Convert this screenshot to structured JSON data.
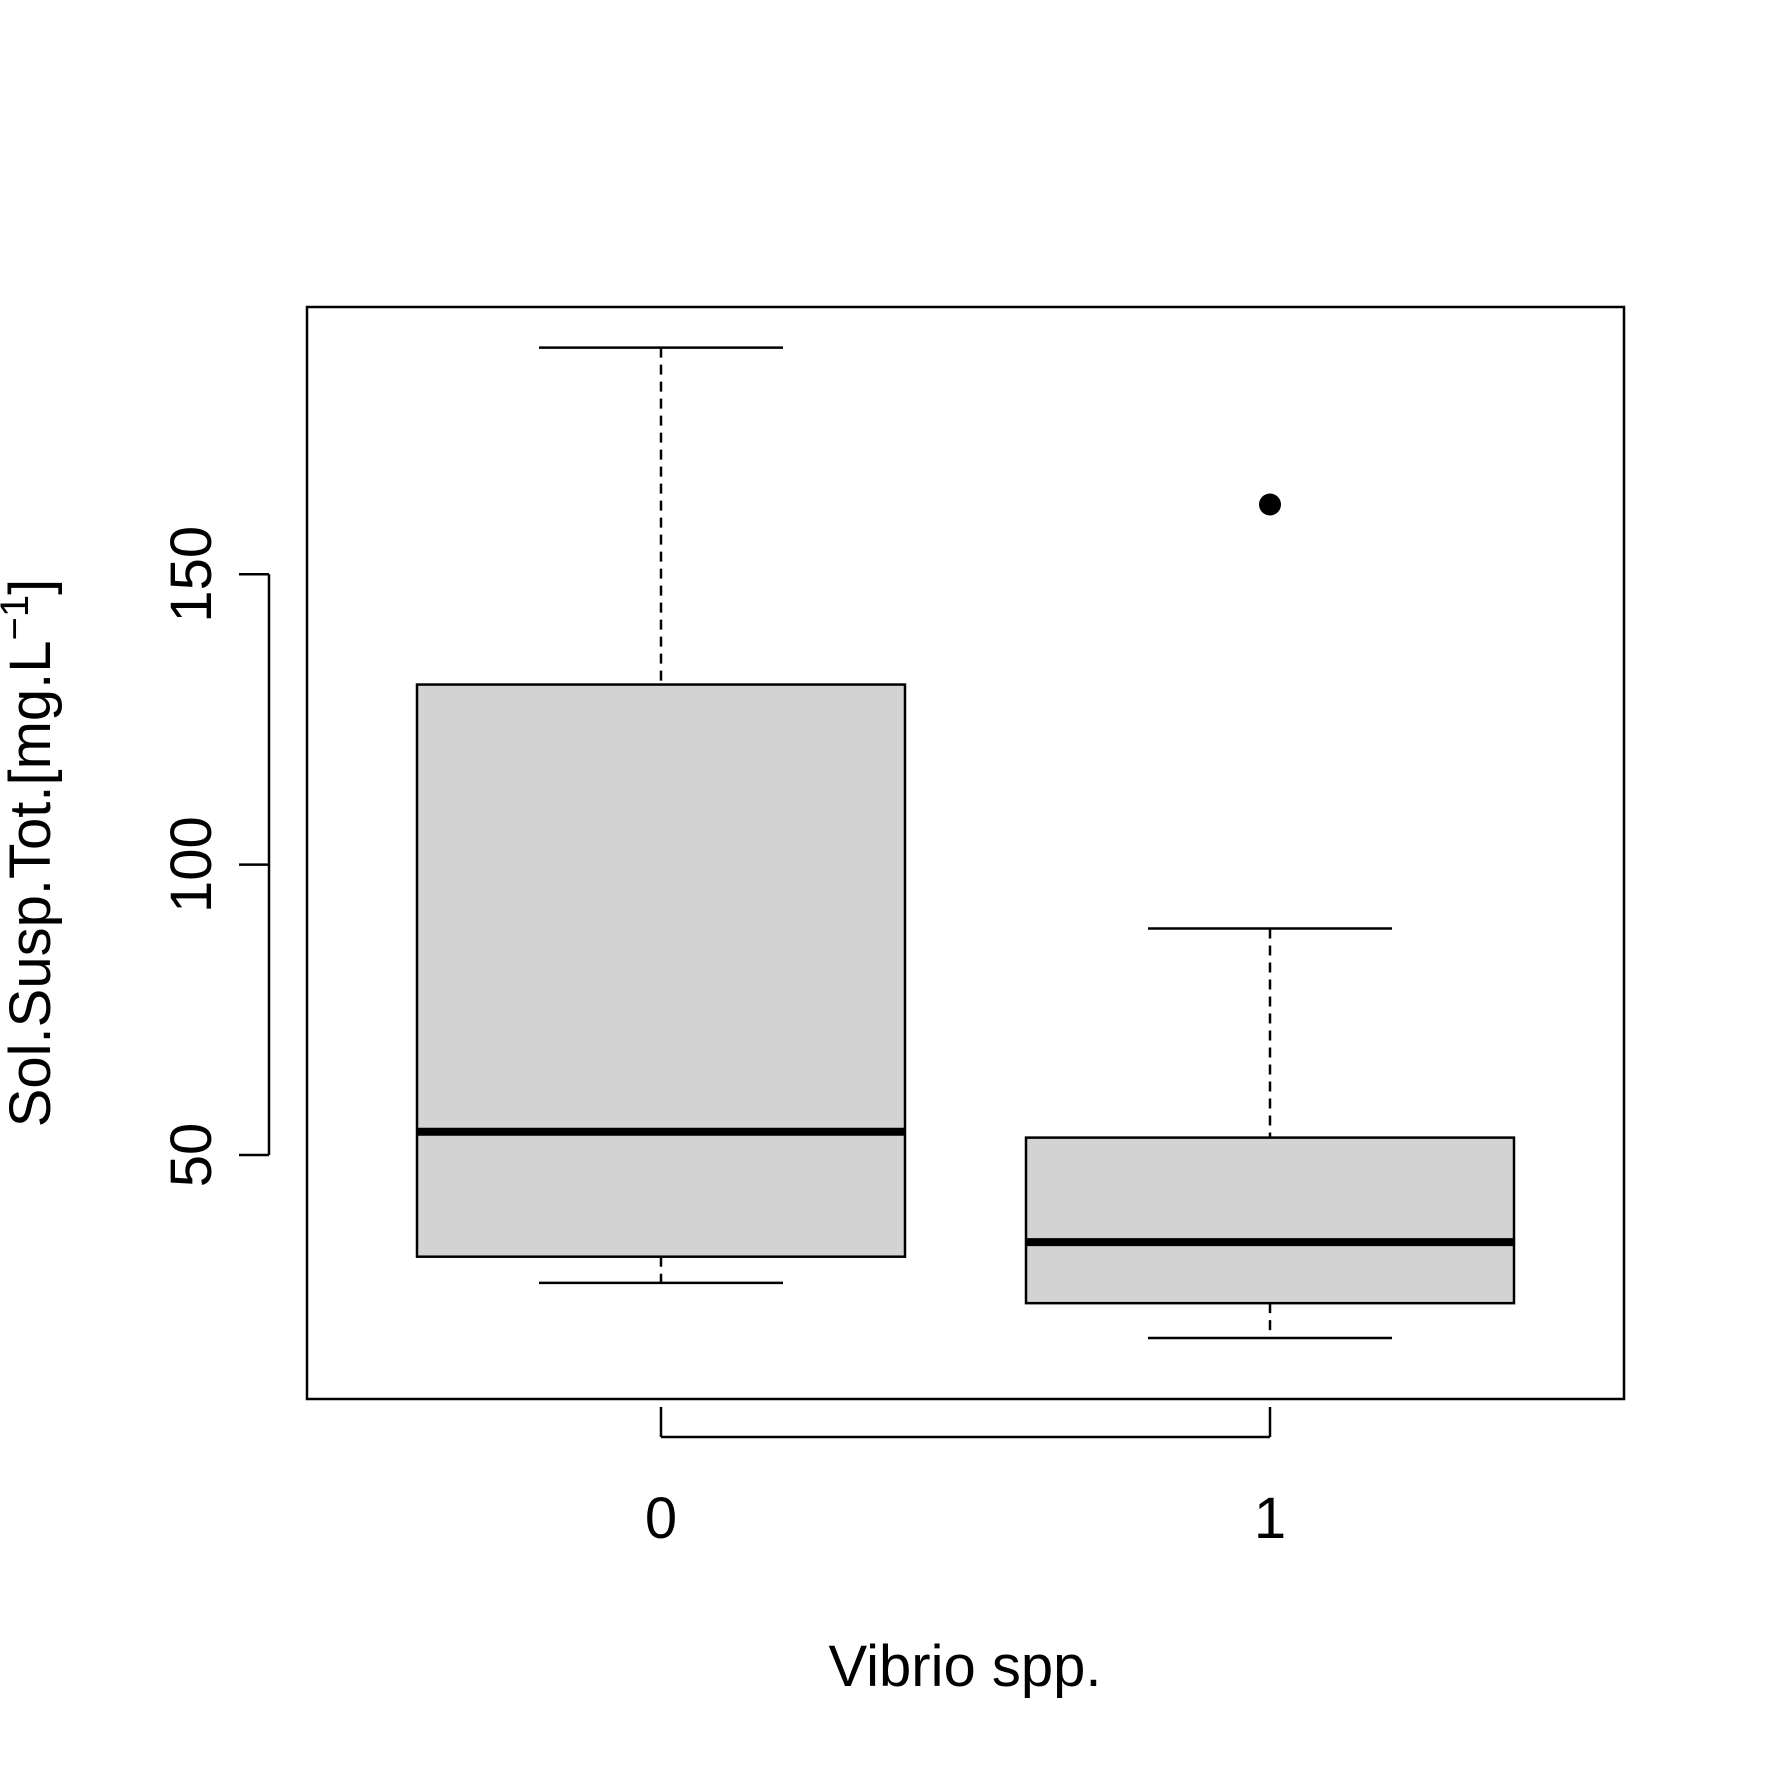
{
  "chart_data": {
    "type": "boxplot",
    "title": "",
    "xlabel": "Vibrio spp.",
    "ylabel_main": "Sol.Susp.Tot.[mg.L",
    "ylabel_sup": "−1",
    "ylabel_end": "]",
    "categories": [
      "0",
      "1"
    ],
    "boxes": [
      {
        "name": "0",
        "whisker_low": 28,
        "q1": 32.5,
        "median": 54,
        "q3": 131,
        "whisker_high": 189,
        "outliers": []
      },
      {
        "name": "1",
        "whisker_low": 18.5,
        "q1": 24.5,
        "median": 35,
        "q3": 53,
        "whisker_high": 89,
        "outliers": [
          162
        ]
      }
    ],
    "ylim": [
      8,
      196
    ],
    "yticks": [
      50,
      100,
      150
    ],
    "ytick_labels": [
      "50",
      "100",
      "150"
    ],
    "box_fill": "#d3d3d3",
    "line_color": "#000000"
  }
}
